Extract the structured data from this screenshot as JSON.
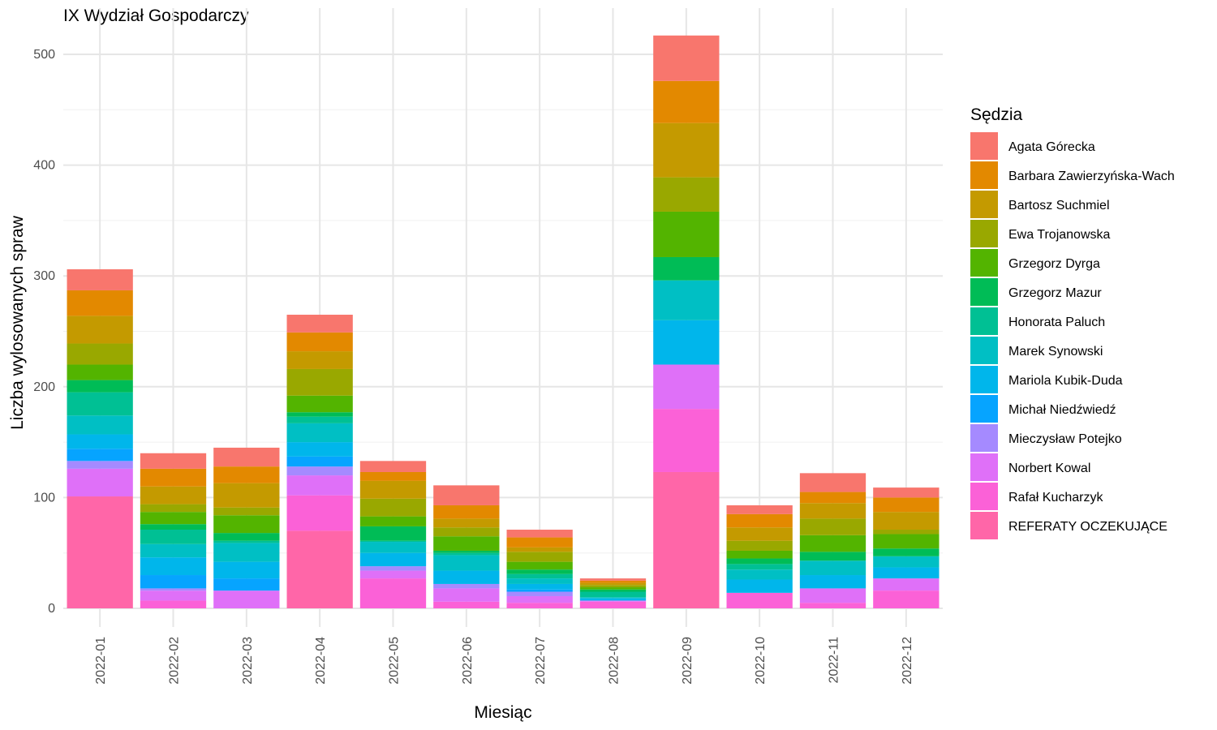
{
  "chart_data": {
    "type": "bar",
    "stacked": true,
    "title": "IX Wydział Gospodarczy",
    "xlabel": "Miesiąc",
    "ylabel": "Liczba wylosowanych spraw",
    "ylim": [
      0,
      530
    ],
    "yticks": [
      0,
      100,
      200,
      300,
      400,
      500
    ],
    "grid": true,
    "legend_title": "Sędzia",
    "legend_position": "right",
    "categories": [
      "2022-01",
      "2022-02",
      "2022-03",
      "2022-04",
      "2022-05",
      "2022-06",
      "2022-07",
      "2022-08",
      "2022-09",
      "2022-10",
      "2022-11",
      "2022-12"
    ],
    "series": [
      {
        "name": "Agata Górecka",
        "color": "#F8766D",
        "values": [
          19,
          14,
          17,
          16,
          10,
          18,
          7,
          2,
          41,
          8,
          17,
          9
        ]
      },
      {
        "name": "Barbara Zawierzyńska-Wach",
        "color": "#E38900",
        "values": [
          23,
          16,
          15,
          17,
          8,
          12,
          9,
          2,
          38,
          12,
          10,
          13
        ]
      },
      {
        "name": "Bartosz Suchmiel",
        "color": "#C49A00",
        "values": [
          25,
          16,
          22,
          16,
          16,
          8,
          4,
          2,
          49,
          12,
          14,
          16
        ]
      },
      {
        "name": "Ewa Trojanowska",
        "color": "#99A800",
        "values": [
          19,
          7,
          7,
          24,
          16,
          8,
          9,
          2,
          31,
          9,
          15,
          4
        ]
      },
      {
        "name": "Grzegorz Dyrga",
        "color": "#53B400",
        "values": [
          14,
          11,
          16,
          15,
          9,
          13,
          7,
          2,
          41,
          7,
          15,
          13
        ]
      },
      {
        "name": "Grzegorz Mazur",
        "color": "#00BC56",
        "values": [
          11,
          5,
          7,
          4,
          13,
          2,
          4,
          2,
          21,
          5,
          8,
          7
        ]
      },
      {
        "name": "Honorata Paluch",
        "color": "#00C094",
        "values": [
          21,
          13,
          2,
          6,
          1,
          2,
          4,
          5,
          0,
          5,
          0,
          0
        ]
      },
      {
        "name": "Marek Synowski",
        "color": "#00BFC4",
        "values": [
          17,
          12,
          17,
          17,
          10,
          14,
          5,
          1,
          36,
          9,
          13,
          10
        ]
      },
      {
        "name": "Mariola Kubik-Duda",
        "color": "#00B6EB",
        "values": [
          13,
          16,
          15,
          13,
          12,
          12,
          5,
          2,
          40,
          12,
          12,
          10
        ]
      },
      {
        "name": "Michał Niedźwiedź",
        "color": "#06A4FF",
        "values": [
          11,
          12,
          11,
          9,
          0,
          0,
          2,
          0,
          0,
          0,
          0,
          0
        ]
      },
      {
        "name": "Mieczysław Potejko",
        "color": "#A58AFF",
        "values": [
          7,
          2,
          0,
          8,
          4,
          4,
          4,
          0,
          0,
          0,
          0,
          0
        ]
      },
      {
        "name": "Norbert Kowal",
        "color": "#DF70F8",
        "values": [
          25,
          9,
          16,
          18,
          7,
          12,
          6,
          1,
          40,
          0,
          13,
          11
        ]
      },
      {
        "name": "Rafał Kucharzyk",
        "color": "#FB61D7",
        "values": [
          0,
          7,
          0,
          32,
          27,
          6,
          5,
          6,
          57,
          14,
          5,
          16
        ]
      },
      {
        "name": "REFERATY OCZEKUJĄCE",
        "color": "#FF66A8",
        "values": [
          101,
          0,
          0,
          70,
          0,
          0,
          0,
          0,
          123,
          0,
          0,
          0
        ]
      }
    ]
  }
}
